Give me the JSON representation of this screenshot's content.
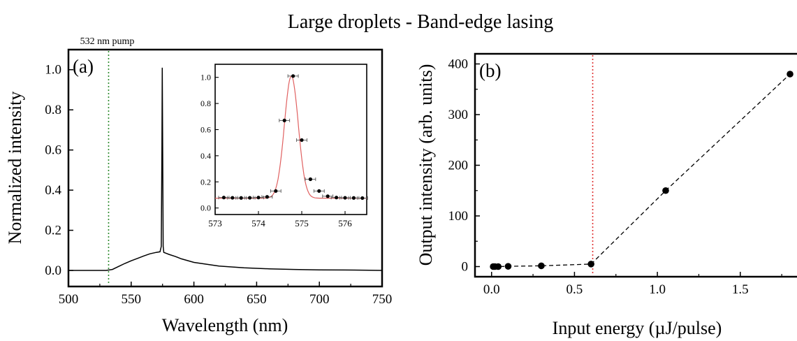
{
  "figure": {
    "title": "Large droplets - Band-edge lasing"
  },
  "chart_data": [
    {
      "id": "panel_a",
      "type": "line",
      "panel_label": "(a)",
      "xlabel": "Wavelength (nm)",
      "ylabel": "Normalized intensity",
      "xlim": [
        500,
        750
      ],
      "ylim": [
        -0.08,
        1.1
      ],
      "xticks": [
        500,
        550,
        600,
        650,
        700,
        750
      ],
      "yticks": [
        0.0,
        0.2,
        0.4,
        0.6,
        0.8,
        1.0
      ],
      "ytick_labels": [
        "0.0",
        "0.2",
        "0.4",
        "0.6",
        "0.8",
        "1.0"
      ],
      "annotations": [
        {
          "text": "532 nm pump",
          "x": 532,
          "style": "dotted",
          "color": "#2e8b2e"
        }
      ],
      "series": [
        {
          "color": "#000000",
          "x": [
            500,
            510,
            520,
            530,
            535,
            540,
            545,
            550,
            555,
            560,
            565,
            570,
            572,
            573,
            574,
            574.5,
            574.8,
            575.1,
            575.5,
            576,
            578,
            580,
            585,
            590,
            600,
            620,
            640,
            660,
            680,
            700,
            720,
            740,
            750
          ],
          "y": [
            0.0,
            0.0,
            0.0,
            0.0,
            0.005,
            0.02,
            0.035,
            0.048,
            0.06,
            0.072,
            0.083,
            0.09,
            0.092,
            0.093,
            0.12,
            0.6,
            1.01,
            0.6,
            0.12,
            0.09,
            0.085,
            0.08,
            0.07,
            0.058,
            0.04,
            0.022,
            0.013,
            0.008,
            0.005,
            0.003,
            0.002,
            0.001,
            0.0
          ]
        }
      ],
      "inset": {
        "type": "scatter",
        "xlim": [
          573,
          576.5
        ],
        "ylim": [
          -0.05,
          1.1
        ],
        "xticks": [
          573,
          574,
          575,
          576
        ],
        "yticks": [
          0.0,
          0.2,
          0.4,
          0.6,
          0.8,
          1.0
        ],
        "ytick_labels": [
          "0.0",
          "0.2",
          "0.4",
          "0.6",
          "0.8",
          "1.0"
        ],
        "points": {
          "x": [
            573.2,
            573.4,
            573.6,
            573.8,
            574.0,
            574.2,
            574.4,
            574.6,
            574.8,
            575.0,
            575.2,
            575.4,
            575.6,
            575.8,
            576.0,
            576.2,
            576.4
          ],
          "y": [
            0.08,
            0.078,
            0.077,
            0.078,
            0.08,
            0.085,
            0.13,
            0.67,
            1.01,
            0.52,
            0.22,
            0.13,
            0.09,
            0.08,
            0.078,
            0.077,
            0.076
          ],
          "xerr": 0.12,
          "color": "#000000"
        },
        "fit": {
          "type": "gaussian",
          "baseline": 0.075,
          "amplitude": 0.935,
          "center": 574.76,
          "sigma": 0.16,
          "color": "#e06060"
        }
      }
    },
    {
      "id": "panel_b",
      "type": "scatter",
      "panel_label": "(b)",
      "xlabel": "Input energy (µJ/pulse)",
      "ylabel": "Output intensity (arb. units)",
      "xlim": [
        -0.1,
        1.88
      ],
      "ylim": [
        -20,
        420
      ],
      "xticks": [
        0.0,
        0.5,
        1.0,
        1.5
      ],
      "xtick_labels": [
        "0.0",
        "0.5",
        "1.0",
        "1.5"
      ],
      "yticks": [
        0,
        100,
        200,
        300,
        400
      ],
      "ytick_labels": [
        "0",
        "100",
        "200",
        "300",
        "400"
      ],
      "threshold": {
        "x": 0.61,
        "style": "dotted",
        "color": "#e03030"
      },
      "series": [
        {
          "color": "#000000",
          "line": "dashed",
          "x": [
            0.01,
            0.02,
            0.04,
            0.1,
            0.3,
            0.6,
            1.05,
            1.8
          ],
          "y": [
            0.0,
            0.0,
            0.0,
            0.5,
            1.5,
            5.0,
            150.0,
            380.0
          ]
        }
      ]
    }
  ]
}
